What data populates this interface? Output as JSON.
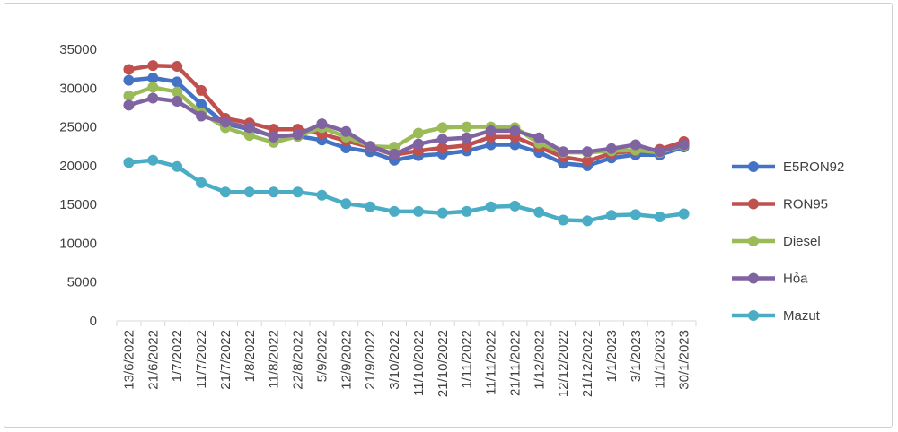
{
  "chart_data": {
    "type": "line",
    "title": "",
    "xlabel": "",
    "ylabel": "",
    "ylim": [
      0,
      35000
    ],
    "yticks": [
      0,
      5000,
      10000,
      15000,
      20000,
      25000,
      30000,
      35000
    ],
    "grid": false,
    "legend_position": "right",
    "categories": [
      "13/6/2022",
      "21/6/2022",
      "1/7/2022",
      "11/7/2022",
      "21/7/2022",
      "1/8/2022",
      "11/8/2022",
      "22/8/2022",
      "5/9/2022",
      "12/9/2022",
      "21/9/2022",
      "3/10/2022",
      "11/10/2022",
      "21/10/2022",
      "1/11/2022",
      "11/11/2022",
      "21/11/2022",
      "1/12/2022",
      "12/12/2022",
      "21/12/2022",
      "1/1/2023",
      "3/1/2023",
      "11/1/2023",
      "30/1/2023"
    ],
    "series": [
      {
        "name": "E5RON92",
        "color": "#4472c4",
        "values": [
          31000,
          31300,
          30800,
          27900,
          25400,
          24700,
          23800,
          23800,
          23300,
          22300,
          21800,
          20700,
          21300,
          21500,
          21900,
          22700,
          22700,
          21700,
          20300,
          20000,
          21000,
          21400,
          21400,
          22400
        ]
      },
      {
        "name": "RON95",
        "color": "#c0504d",
        "values": [
          32400,
          32900,
          32800,
          29700,
          26100,
          25500,
          24700,
          24700,
          24100,
          23200,
          22400,
          21400,
          21900,
          22300,
          22600,
          23700,
          23700,
          22400,
          21100,
          20600,
          21600,
          21900,
          22100,
          23100
        ]
      },
      {
        "name": "Diesel",
        "color": "#9bbb59",
        "values": [
          29000,
          30100,
          29500,
          26800,
          24900,
          23900,
          23000,
          23800,
          24900,
          23700,
          22500,
          22400,
          24200,
          24900,
          25000,
          25000,
          24900,
          22900,
          21700,
          21700,
          21900,
          22000,
          21700,
          22600
        ]
      },
      {
        "name": "Hỏa",
        "color": "#8064a2",
        "values": [
          27800,
          28700,
          28300,
          26400,
          25600,
          24900,
          23700,
          24000,
          25400,
          24400,
          22500,
          21500,
          22800,
          23400,
          23600,
          24500,
          24500,
          23600,
          21800,
          21800,
          22200,
          22700,
          21800,
          22700
        ]
      },
      {
        "name": "Mazut",
        "color": "#4bacc6",
        "values": [
          20400,
          20700,
          19900,
          17800,
          16600,
          16600,
          16600,
          16600,
          16200,
          15100,
          14700,
          14100,
          14100,
          13900,
          14100,
          14700,
          14800,
          14000,
          13000,
          12900,
          13600,
          13700,
          13400,
          13800
        ]
      }
    ]
  }
}
